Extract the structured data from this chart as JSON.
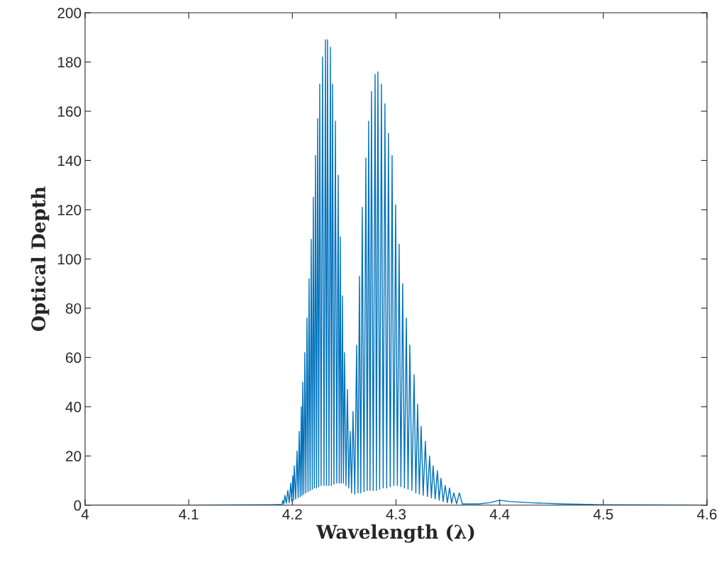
{
  "chart_data": {
    "type": "line",
    "xlabel": "Wavelength (λ)",
    "ylabel": "Optical Depth",
    "xlim": [
      4,
      4.6
    ],
    "xticks": [
      4,
      4.1,
      4.2,
      4.3,
      4.4,
      4.5,
      4.6
    ],
    "ylim": [
      0,
      200
    ],
    "yticks": [
      0,
      20,
      40,
      60,
      80,
      100,
      120,
      140,
      160,
      180,
      200
    ],
    "marker": "none",
    "line_style": "solid",
    "series": [
      {
        "color": "#0072bd",
        "x": [
          4.0,
          4.1,
          4.18,
          4.19,
          4.1908,
          4.1918,
          4.1929,
          4.1942,
          4.1956,
          4.197,
          4.1984,
          4.1994,
          4.2004,
          4.2011,
          4.2018,
          4.2032,
          4.2045,
          4.2056,
          4.2066,
          4.2076,
          4.2086,
          4.2093,
          4.21,
          4.211,
          4.212,
          4.213,
          4.2141,
          4.2151,
          4.2161,
          4.2171,
          4.2182,
          4.2192,
          4.2202,
          4.2212,
          4.2223,
          4.2233,
          4.2244,
          4.2254,
          4.2264,
          4.2277,
          4.2291,
          4.2305,
          4.2319,
          4.2329,
          4.2339,
          4.2353,
          4.2367,
          4.2377,
          4.2387,
          4.2401,
          4.2415,
          4.2428,
          4.2442,
          4.2452,
          4.2462,
          4.2472,
          4.2483,
          4.2493,
          4.2503,
          4.2517,
          4.2531,
          4.2544,
          4.2558,
          4.2571,
          4.2585,
          4.2602,
          4.262,
          4.2633,
          4.2647,
          4.266,
          4.2674,
          4.2691,
          4.2709,
          4.2722,
          4.2736,
          4.2749,
          4.2763,
          4.278,
          4.2798,
          4.2811,
          4.2825,
          4.2842,
          4.2859,
          4.2876,
          4.2893,
          4.291,
          4.2927,
          4.2944,
          4.2962,
          4.2979,
          4.2996,
          4.3013,
          4.303,
          4.3047,
          4.3064,
          4.3081,
          4.3099,
          4.3116,
          4.3133,
          4.3153,
          4.3174,
          4.3191,
          4.3208,
          4.3225,
          4.3242,
          4.3262,
          4.3283,
          4.3303,
          4.3324,
          4.3341,
          4.3358,
          4.3378,
          4.3399,
          4.3416,
          4.3434,
          4.3454,
          4.3475,
          4.3495,
          4.3516,
          4.3536,
          4.3557,
          4.3584,
          4.3611,
          4.364,
          4.38,
          4.39,
          4.4,
          4.41,
          4.43,
          4.46,
          4.5,
          4.6
        ],
        "values": [
          0,
          0,
          0.2,
          0.3,
          2,
          0.5,
          4,
          0.8,
          6,
          1,
          9,
          1.5,
          12,
          2,
          16,
          2.5,
          22,
          3,
          30,
          3.5,
          40,
          4,
          50,
          4.5,
          62,
          5,
          76,
          5.5,
          92,
          6,
          108,
          6.5,
          125,
          7,
          142,
          7,
          157,
          7.5,
          171,
          8,
          182,
          8,
          189,
          8,
          189,
          8,
          186,
          8,
          171,
          8.5,
          156,
          9,
          134,
          9,
          109,
          9,
          85,
          9,
          62,
          8,
          47,
          7,
          30,
          5,
          38,
          4.5,
          65,
          5,
          93,
          5,
          121,
          5.5,
          141,
          6,
          156,
          6,
          168,
          6,
          175,
          6,
          176,
          6.5,
          171,
          7,
          163,
          7,
          151,
          7.5,
          142,
          8,
          122,
          8,
          106,
          7.5,
          90,
          7,
          76,
          6.5,
          65,
          6,
          53,
          5,
          41,
          4.5,
          32,
          4,
          26,
          3.5,
          20,
          3,
          16,
          2.5,
          14,
          2,
          11,
          1.5,
          8,
          1,
          7,
          0.8,
          5,
          0.6,
          5,
          0.5,
          0.5,
          1,
          2,
          1.5,
          1,
          0.5,
          0.2,
          0
        ]
      }
    ]
  }
}
